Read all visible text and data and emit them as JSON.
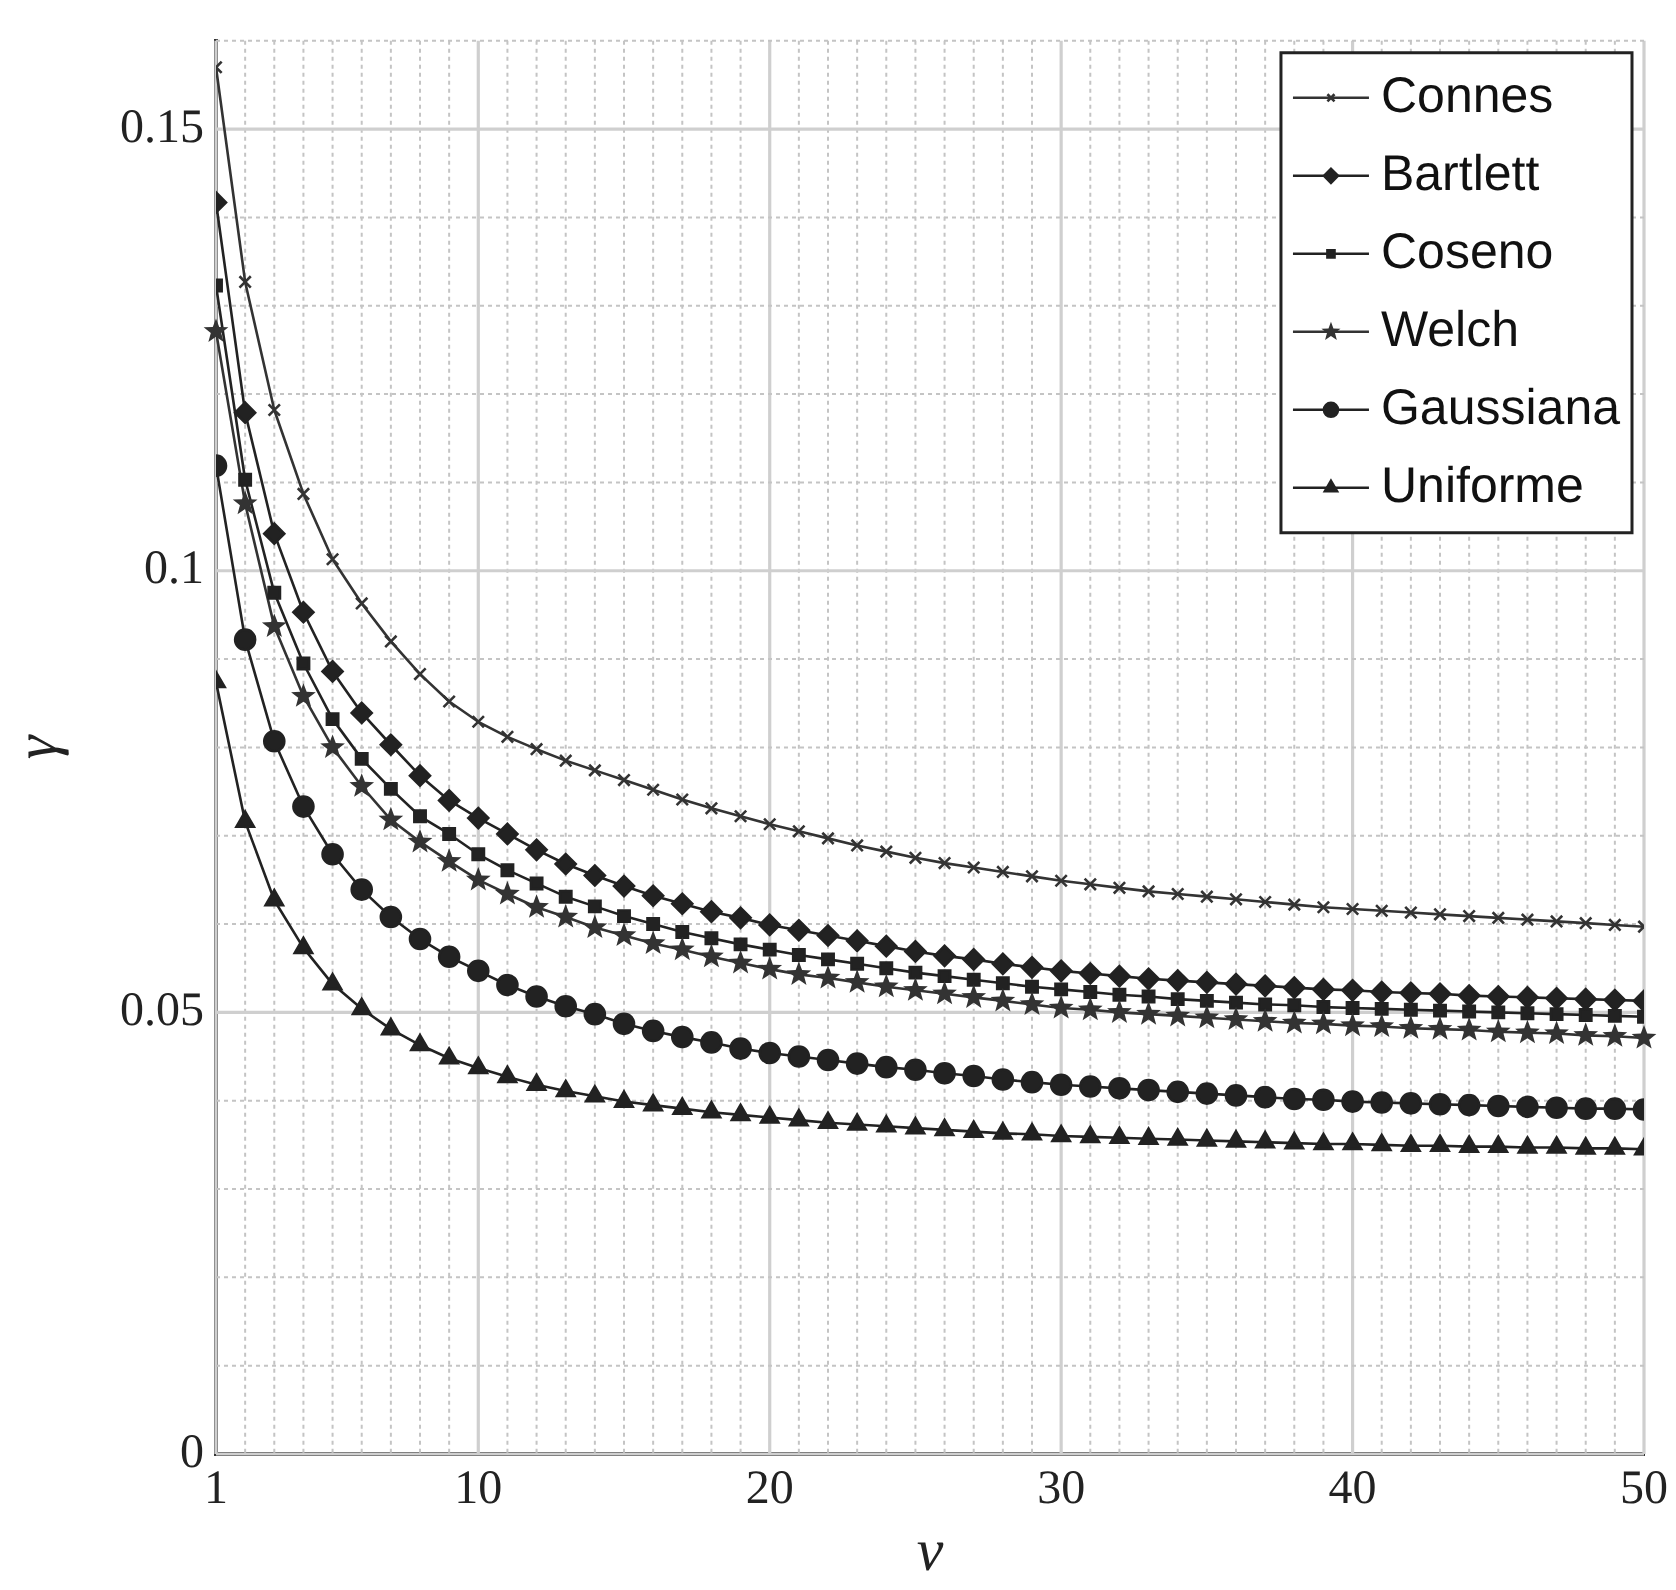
{
  "chart_data": {
    "type": "line",
    "xlabel": "ν",
    "ylabel": "γ",
    "x": [
      1,
      2,
      3,
      4,
      5,
      6,
      7,
      8,
      9,
      10,
      11,
      12,
      13,
      14,
      15,
      16,
      17,
      18,
      19,
      20,
      21,
      22,
      23,
      24,
      25,
      26,
      27,
      28,
      29,
      30,
      31,
      32,
      33,
      34,
      35,
      36,
      37,
      38,
      39,
      40,
      41,
      42,
      43,
      44,
      45,
      46,
      47,
      48,
      49,
      50
    ],
    "series": [
      {
        "name": "Connes",
        "color": "#333333",
        "marker": "cross",
        "values": [
          0.157,
          0.1327,
          0.1182,
          0.1087,
          0.1013,
          0.0963,
          0.092,
          0.0883,
          0.0852,
          0.0829,
          0.0812,
          0.0798,
          0.0785,
          0.0774,
          0.0763,
          0.0752,
          0.0741,
          0.0731,
          0.0722,
          0.0713,
          0.0705,
          0.0697,
          0.0689,
          0.0682,
          0.0675,
          0.0669,
          0.0664,
          0.0659,
          0.0654,
          0.0649,
          0.0645,
          0.0641,
          0.0637,
          0.0634,
          0.0631,
          0.0628,
          0.0625,
          0.0622,
          0.0619,
          0.0617,
          0.0615,
          0.0613,
          0.0611,
          0.0609,
          0.0607,
          0.0605,
          0.0603,
          0.0601,
          0.0599,
          0.0597
        ]
      },
      {
        "name": "Bartlett",
        "color": "#222222",
        "marker": "diamond",
        "values": [
          0.1417,
          0.1179,
          0.1042,
          0.0953,
          0.0886,
          0.0839,
          0.0803,
          0.0768,
          0.074,
          0.072,
          0.0702,
          0.0684,
          0.0668,
          0.0655,
          0.0643,
          0.0632,
          0.0623,
          0.0614,
          0.0607,
          0.0599,
          0.0593,
          0.0587,
          0.0581,
          0.0575,
          0.0569,
          0.0564,
          0.056,
          0.0555,
          0.0551,
          0.0547,
          0.0544,
          0.0541,
          0.0538,
          0.0536,
          0.0534,
          0.0532,
          0.053,
          0.0528,
          0.0526,
          0.0525,
          0.0523,
          0.0522,
          0.0521,
          0.0519,
          0.0518,
          0.0517,
          0.0516,
          0.0515,
          0.0514,
          0.0513
        ]
      },
      {
        "name": "Coseno",
        "color": "#222222",
        "marker": "square",
        "values": [
          0.1323,
          0.1103,
          0.0975,
          0.0895,
          0.0832,
          0.0787,
          0.0753,
          0.0722,
          0.0702,
          0.0679,
          0.0661,
          0.0646,
          0.0631,
          0.062,
          0.0609,
          0.06,
          0.0591,
          0.0584,
          0.0577,
          0.0571,
          0.0565,
          0.056,
          0.0555,
          0.055,
          0.0545,
          0.0541,
          0.0537,
          0.0533,
          0.0529,
          0.0526,
          0.0523,
          0.052,
          0.0518,
          0.0515,
          0.0513,
          0.0511,
          0.0509,
          0.0508,
          0.0506,
          0.0505,
          0.0504,
          0.0503,
          0.0502,
          0.0501,
          0.05,
          0.0499,
          0.0498,
          0.0497,
          0.0496,
          0.0495
        ]
      },
      {
        "name": "Welch",
        "color": "#333333",
        "marker": "star",
        "values": [
          0.1271,
          0.1076,
          0.0937,
          0.0858,
          0.08,
          0.0756,
          0.0718,
          0.0693,
          0.0671,
          0.065,
          0.0634,
          0.0619,
          0.0608,
          0.0596,
          0.0587,
          0.0578,
          0.0571,
          0.0563,
          0.0556,
          0.0549,
          0.0543,
          0.0539,
          0.0534,
          0.0529,
          0.0525,
          0.0521,
          0.0517,
          0.0513,
          0.0509,
          0.0505,
          0.0503,
          0.05,
          0.0498,
          0.0496,
          0.0494,
          0.0492,
          0.049,
          0.0488,
          0.0487,
          0.0485,
          0.0484,
          0.0482,
          0.0481,
          0.048,
          0.0478,
          0.0477,
          0.0476,
          0.0474,
          0.0473,
          0.0471
        ]
      },
      {
        "name": "Gaussiana",
        "color": "#222222",
        "marker": "circle",
        "values": [
          0.1119,
          0.0922,
          0.0807,
          0.0733,
          0.0679,
          0.0639,
          0.0608,
          0.0583,
          0.0563,
          0.0547,
          0.0531,
          0.0518,
          0.0507,
          0.0498,
          0.0487,
          0.0479,
          0.0472,
          0.0466,
          0.0459,
          0.0454,
          0.045,
          0.0446,
          0.0442,
          0.0438,
          0.0435,
          0.0431,
          0.0428,
          0.0424,
          0.0421,
          0.0418,
          0.0416,
          0.0414,
          0.0412,
          0.041,
          0.0408,
          0.0406,
          0.0404,
          0.0402,
          0.0401,
          0.0399,
          0.0398,
          0.0397,
          0.0396,
          0.0395,
          0.0394,
          0.0393,
          0.0392,
          0.0391,
          0.0391,
          0.039
        ]
      },
      {
        "name": "Uniforme",
        "color": "#222222",
        "marker": "triangle",
        "values": [
          0.0874,
          0.0716,
          0.0627,
          0.0573,
          0.0532,
          0.0504,
          0.0481,
          0.0463,
          0.0448,
          0.0437,
          0.0427,
          0.0418,
          0.0411,
          0.0405,
          0.0399,
          0.0395,
          0.0391,
          0.0387,
          0.0384,
          0.0381,
          0.0378,
          0.0375,
          0.0373,
          0.0371,
          0.0369,
          0.0367,
          0.0365,
          0.0363,
          0.0362,
          0.036,
          0.0359,
          0.0358,
          0.0357,
          0.0356,
          0.0355,
          0.0354,
          0.0353,
          0.0352,
          0.0351,
          0.0351,
          0.035,
          0.0349,
          0.0349,
          0.0348,
          0.0348,
          0.0347,
          0.0347,
          0.0346,
          0.0346,
          0.0345
        ]
      }
    ],
    "xlim": [
      1,
      50
    ],
    "ylim": [
      0,
      0.16
    ],
    "xticks": [
      1,
      {
        "value": 2,
        "label": null
      },
      {
        "value": 3,
        "label": null
      },
      {
        "value": 4,
        "label": null
      },
      {
        "value": 5,
        "label": null
      },
      {
        "value": 6,
        "label": null
      },
      {
        "value": 7,
        "label": null
      },
      {
        "value": 8,
        "label": null
      },
      {
        "value": 9,
        "label": null
      },
      10,
      {
        "value": 11,
        "label": null
      },
      {
        "value": 12,
        "label": null
      },
      {
        "value": 13,
        "label": null
      },
      {
        "value": 14,
        "label": null
      },
      {
        "value": 15,
        "label": null
      },
      {
        "value": 16,
        "label": null
      },
      {
        "value": 17,
        "label": null
      },
      {
        "value": 18,
        "label": null
      },
      {
        "value": 19,
        "label": null
      },
      20,
      {
        "value": 21,
        "label": null
      },
      {
        "value": 22,
        "label": null
      },
      {
        "value": 23,
        "label": null
      },
      {
        "value": 24,
        "label": null
      },
      {
        "value": 25,
        "label": null
      },
      {
        "value": 26,
        "label": null
      },
      {
        "value": 27,
        "label": null
      },
      {
        "value": 28,
        "label": null
      },
      {
        "value": 29,
        "label": null
      },
      30,
      {
        "value": 31,
        "label": null
      },
      {
        "value": 32,
        "label": null
      },
      {
        "value": 33,
        "label": null
      },
      {
        "value": 34,
        "label": null
      },
      {
        "value": 35,
        "label": null
      },
      {
        "value": 36,
        "label": null
      },
      {
        "value": 37,
        "label": null
      },
      {
        "value": 38,
        "label": null
      },
      {
        "value": 39,
        "label": null
      },
      40,
      {
        "value": 41,
        "label": null
      },
      {
        "value": 42,
        "label": null
      },
      {
        "value": 43,
        "label": null
      },
      {
        "value": 44,
        "label": null
      },
      {
        "value": 45,
        "label": null
      },
      {
        "value": 46,
        "label": null
      },
      {
        "value": 47,
        "label": null
      },
      {
        "value": 48,
        "label": null
      },
      {
        "value": 49,
        "label": null
      },
      50
    ],
    "yticks": [
      0,
      {
        "value": 0.01,
        "label": null
      },
      {
        "value": 0.02,
        "label": null
      },
      {
        "value": 0.03,
        "label": null
      },
      {
        "value": 0.04,
        "label": null
      },
      0.05,
      {
        "value": 0.06,
        "label": null
      },
      {
        "value": 0.07,
        "label": null
      },
      {
        "value": 0.08,
        "label": null
      },
      {
        "value": 0.09,
        "label": null
      },
      0.1,
      {
        "value": 0.11,
        "label": null
      },
      {
        "value": 0.12,
        "label": null
      },
      {
        "value": 0.13,
        "label": null
      },
      {
        "value": 0.14,
        "label": null
      },
      0.15,
      {
        "value": 0.16,
        "label": null
      }
    ],
    "grid": true,
    "legend": "top right"
  }
}
